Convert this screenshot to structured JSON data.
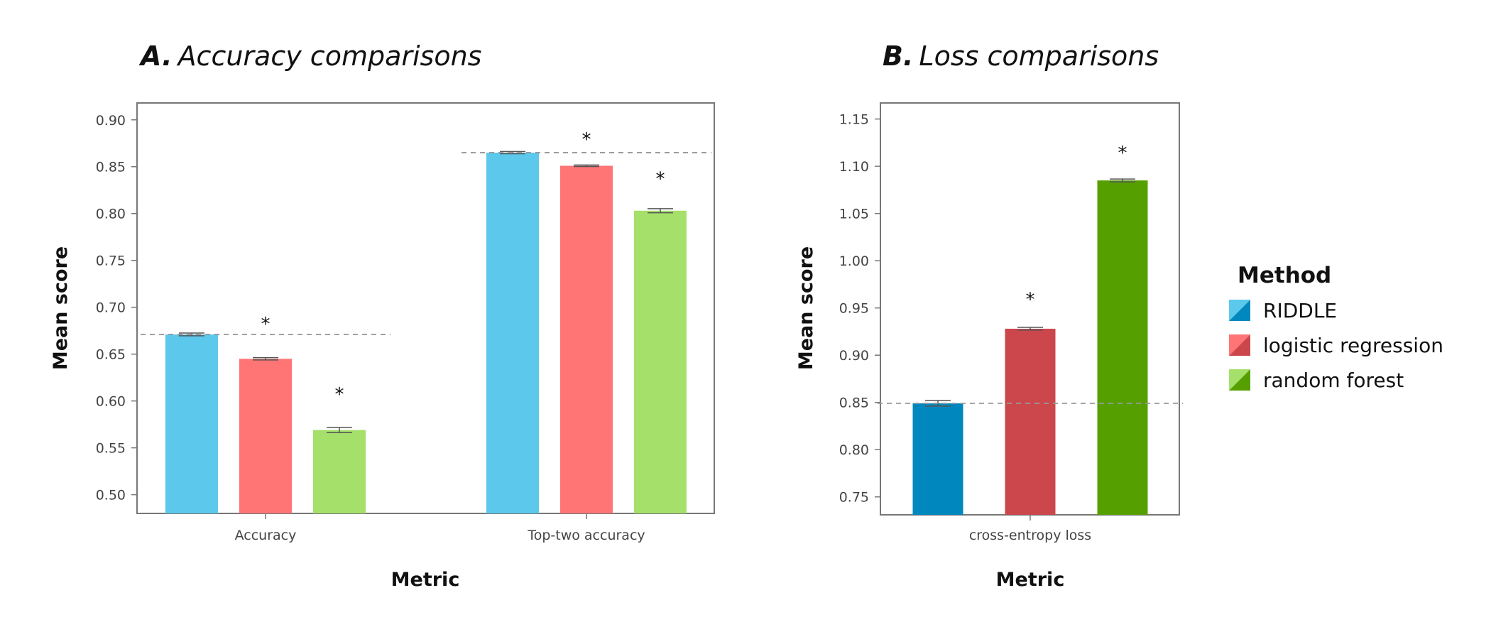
{
  "chart_data": [
    {
      "type": "bar",
      "panel_letter": "A.",
      "title": "Accuracy comparisons",
      "xlabel": "Metric",
      "ylabel": "Mean score",
      "categories": [
        "Accuracy",
        "Top-two accuracy"
      ],
      "ylim": [
        0.48,
        0.918
      ],
      "yticks": [
        0.5,
        0.55,
        0.6,
        0.65,
        0.7,
        0.75,
        0.8,
        0.85,
        0.9
      ],
      "ytick_labels": [
        "0.50",
        "0.55",
        "0.60",
        "0.65",
        "0.70",
        "0.75",
        "0.80",
        "0.85",
        "0.90"
      ],
      "grid": false,
      "series": [
        {
          "name": "RIDDLE",
          "color": "#5BC8EC",
          "values": [
            0.671,
            0.865
          ],
          "errors": [
            0.0015,
            0.0012
          ]
        },
        {
          "name": "logistic regression",
          "color": "#FF7475",
          "values": [
            0.645,
            0.851
          ],
          "errors": [
            0.0012,
            0.0008
          ]
        },
        {
          "name": "random forest",
          "color": "#A5E06A",
          "values": [
            0.569,
            0.803
          ],
          "errors": [
            0.0028,
            0.0022
          ]
        }
      ],
      "reference_lines": [
        0.671,
        0.865
      ],
      "significance_markers": [
        {
          "category": 0,
          "series": 1,
          "label": "*",
          "y": 0.683
        },
        {
          "category": 0,
          "series": 2,
          "label": "*",
          "y": 0.608
        },
        {
          "category": 1,
          "series": 1,
          "label": "*",
          "y": 0.88
        },
        {
          "category": 1,
          "series": 2,
          "label": "*",
          "y": 0.838
        }
      ]
    },
    {
      "type": "bar",
      "panel_letter": "B.",
      "title": "Loss comparisons",
      "xlabel": "Metric",
      "ylabel": "Mean score",
      "categories": [
        "cross-entropy loss"
      ],
      "ylim": [
        0.731,
        1.167
      ],
      "yticks": [
        0.75,
        0.8,
        0.85,
        0.9,
        0.95,
        1.0,
        1.05,
        1.1,
        1.15
      ],
      "ytick_labels": [
        "0.75",
        "0.80",
        "0.85",
        "0.90",
        "0.95",
        "1.00",
        "1.05",
        "1.10",
        "1.15"
      ],
      "grid": false,
      "series": [
        {
          "name": "RIDDLE",
          "color": "#0088BE",
          "values": [
            0.849
          ],
          "errors": [
            0.003
          ]
        },
        {
          "name": "logistic regression",
          "color": "#CB474C",
          "values": [
            0.928
          ],
          "errors": [
            0.0015
          ]
        },
        {
          "name": "random forest",
          "color": "#55A000",
          "values": [
            1.085
          ],
          "errors": [
            0.0015
          ]
        }
      ],
      "reference_lines": [
        0.849
      ],
      "significance_markers": [
        {
          "category": 0,
          "series": 1,
          "label": "*",
          "y": 0.96
        },
        {
          "category": 0,
          "series": 2,
          "label": "*",
          "y": 1.115
        }
      ]
    }
  ],
  "legend": {
    "title": "Method",
    "placement": "right",
    "items": [
      {
        "label": "RIDDLE",
        "light": "#5BC8EC",
        "dark": "#0088BE"
      },
      {
        "label": "logistic regression",
        "light": "#FF7475",
        "dark": "#CB474C"
      },
      {
        "label": "random forest",
        "light": "#A5E06A",
        "dark": "#55A000"
      }
    ]
  }
}
